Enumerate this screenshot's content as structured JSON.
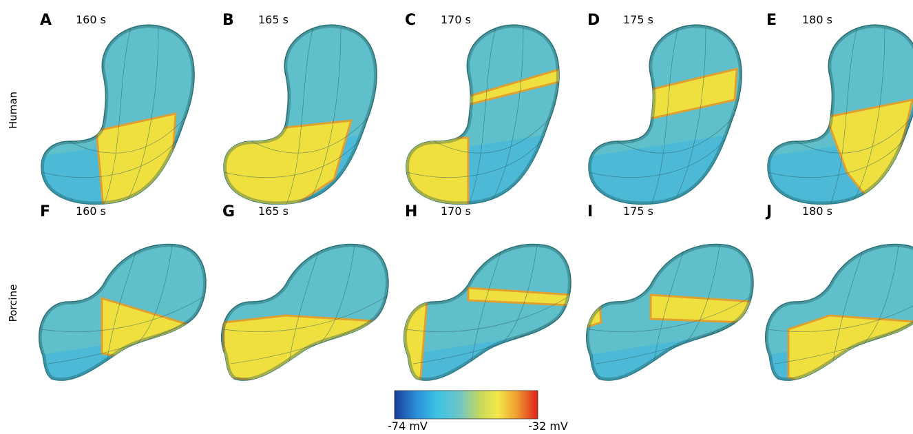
{
  "row_labels": [
    "Human",
    "Porcine"
  ],
  "panels": [
    {
      "letter": "A",
      "time": "160 s"
    },
    {
      "letter": "B",
      "time": "165 s"
    },
    {
      "letter": "C",
      "time": "170 s"
    },
    {
      "letter": "D",
      "time": "175 s"
    },
    {
      "letter": "E",
      "time": "180 s"
    },
    {
      "letter": "F",
      "time": "160 s"
    },
    {
      "letter": "G",
      "time": "165 s"
    },
    {
      "letter": "H",
      "time": "170 s"
    },
    {
      "letter": "I",
      "time": "175 s"
    },
    {
      "letter": "J",
      "time": "180 s"
    }
  ],
  "colorbar": {
    "min_label": "-74 mV",
    "max_label": "-32 mV"
  }
}
